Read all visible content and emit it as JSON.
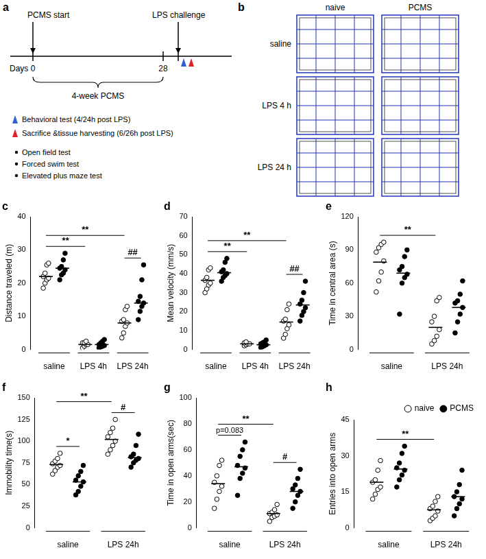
{
  "timeline": {
    "panel": "a",
    "start_label": "PCMS start",
    "challenge_label": "LPS challenge",
    "axis_label": "Days",
    "day_ticks": [
      0,
      28
    ],
    "period_label": "4-week PCMS",
    "markers": [
      {
        "label": "Behavioral test (4/24h post LPS)",
        "color": "#2f5fd0"
      },
      {
        "label": "Sacrifice &tissue harvesting (6/26h post LPS)",
        "color": "#e0202a"
      }
    ],
    "tests": [
      "Open field test",
      "Forced swim test",
      "Elevated plus maze test"
    ]
  },
  "tracks": {
    "panel": "b",
    "columns": [
      "naive",
      "PCMS"
    ],
    "rows": [
      "saline",
      "LPS 4 h",
      "LPS 24 h"
    ],
    "color": "#2233bb"
  },
  "chart_data": [
    {
      "panel": "c",
      "type": "scatter",
      "y_label": "Distance traveled (m)",
      "categories": [
        "saline",
        "LPS 4h",
        "LPS 24h"
      ],
      "series": [
        {
          "name": "naive",
          "color": "#000000",
          "marker": "circle-open",
          "values": [
            [
              18.5,
              20,
              21,
              21.5,
              22,
              23,
              25.5,
              26
            ],
            [
              0.5,
              1,
              1.5,
              1.5,
              2,
              2,
              2.5
            ],
            [
              3.5,
              5,
              7,
              8,
              8.5,
              9,
              12,
              13
            ]
          ],
          "means": [
            22,
            1.5,
            8
          ]
        },
        {
          "name": "PCMS",
          "color": "#000000",
          "marker": "circle",
          "values": [
            [
              21,
              22.5,
              23,
              24,
              24.5,
              25,
              27,
              29
            ],
            [
              0.5,
              0.8,
              1,
              1.2,
              1.5,
              2,
              2.5,
              3
            ],
            [
              9,
              11.5,
              13,
              14,
              14.5,
              16,
              21,
              25.5
            ]
          ],
          "means": [
            24.5,
            1.5,
            14
          ]
        }
      ],
      "ylim": [
        0,
        40
      ],
      "yticks": [
        0,
        10,
        20,
        30,
        40
      ],
      "grid": false,
      "annotations": [
        {
          "text": "**",
          "from": {
            "category": "saline",
            "series": "naive"
          },
          "to": {
            "category": "LPS 4h",
            "series": "naive"
          }
        },
        {
          "text": "**",
          "from": {
            "category": "saline",
            "series": "naive"
          },
          "to": {
            "category": "LPS 24h",
            "series": "naive"
          }
        },
        {
          "text": "##",
          "from": {
            "category": "LPS 24h",
            "series": "naive"
          },
          "to": {
            "category": "LPS 24h",
            "series": "PCMS"
          }
        }
      ]
    },
    {
      "panel": "d",
      "type": "scatter",
      "y_label": "Mean velocity (mm/s)",
      "categories": [
        "saline",
        "LPS 4h",
        "LPS 24h"
      ],
      "series": [
        {
          "name": "naive",
          "color": "#000000",
          "marker": "circle-open",
          "values": [
            [
              30,
              32,
              34,
              35,
              36.5,
              38,
              42,
              43
            ],
            [
              2,
              2.5,
              3,
              3,
              3.5,
              4
            ],
            [
              6,
              8,
              11,
              13,
              15,
              16,
              21,
              24
            ]
          ],
          "means": [
            36.5,
            3,
            14.5
          ]
        },
        {
          "name": "PCMS",
          "color": "#000000",
          "marker": "circle",
          "values": [
            [
              36,
              38,
              39,
              40,
              41,
              42,
              46,
              48
            ],
            [
              1,
              1.5,
              2,
              2.5,
              3,
              3.5,
              4,
              5
            ],
            [
              15,
              18,
              20,
              22,
              24,
              26,
              30,
              36
            ]
          ],
          "means": [
            40.5,
            2.5,
            23.5
          ]
        }
      ],
      "ylim": [
        0,
        70
      ],
      "yticks": [
        0,
        10,
        20,
        30,
        40,
        50,
        60,
        70
      ],
      "grid": false,
      "annotations": [
        {
          "text": "**",
          "from": {
            "category": "saline",
            "series": "naive"
          },
          "to": {
            "category": "LPS 4h",
            "series": "naive"
          }
        },
        {
          "text": "**",
          "from": {
            "category": "saline",
            "series": "naive"
          },
          "to": {
            "category": "LPS 24h",
            "series": "naive"
          }
        },
        {
          "text": "##",
          "from": {
            "category": "LPS 24h",
            "series": "naive"
          },
          "to": {
            "category": "LPS 24h",
            "series": "PCMS"
          }
        }
      ]
    },
    {
      "panel": "e",
      "type": "scatter",
      "y_label": "Time in central area (s)",
      "categories": [
        "saline",
        "LPS 24h"
      ],
      "series": [
        {
          "name": "naive",
          "color": "#000000",
          "marker": "circle-open",
          "values": [
            [
              52,
              62,
              70,
              80,
              88,
              92,
              95,
              97
            ],
            [
              5,
              8,
              12,
              18,
              25,
              30,
              44,
              47
            ]
          ],
          "means": [
            79,
            20
          ]
        },
        {
          "name": "PCMS",
          "color": "#000000",
          "marker": "circle",
          "values": [
            [
              32,
              60,
              65,
              68,
              72,
              75,
              84,
              90
            ],
            [
              15,
              25,
              32,
              38,
              42,
              44,
              50,
              62
            ]
          ],
          "means": [
            69,
            38
          ]
        }
      ],
      "ylim": [
        0,
        120
      ],
      "yticks": [
        0,
        30,
        60,
        90,
        120
      ],
      "grid": false,
      "annotations": [
        {
          "text": "**",
          "from": {
            "category": "saline",
            "series": "naive"
          },
          "to": {
            "category": "LPS 24h",
            "series": "naive"
          }
        }
      ]
    },
    {
      "panel": "f",
      "type": "scatter",
      "y_label": "Immobility time(s)",
      "categories": [
        "saline",
        "LPS 24h"
      ],
      "series": [
        {
          "name": "naive",
          "color": "#000000",
          "marker": "circle-open",
          "values": [
            [
              62,
              66,
              70,
              72,
              74,
              77,
              80,
              86
            ],
            [
              85,
              90,
              95,
              100,
              105,
              110,
              115,
              125
            ]
          ],
          "means": [
            73,
            102
          ]
        },
        {
          "name": "PCMS",
          "color": "#000000",
          "marker": "circle",
          "values": [
            [
              38,
              42,
              48,
              53,
              55,
              60,
              65,
              72
            ],
            [
              70,
              75,
              78,
              80,
              82,
              85,
              95,
              108
            ]
          ],
          "means": [
            53,
            81
          ]
        }
      ],
      "ylim": [
        0,
        150
      ],
      "yticks": [
        0,
        25,
        50,
        75,
        100,
        125,
        150
      ],
      "grid": false,
      "annotations": [
        {
          "text": "*",
          "from": {
            "category": "saline",
            "series": "naive"
          },
          "to": {
            "category": "saline",
            "series": "PCMS"
          }
        },
        {
          "text": "**",
          "from": {
            "category": "saline",
            "series": "naive"
          },
          "to": {
            "category": "LPS 24h",
            "series": "naive"
          }
        },
        {
          "text": "#",
          "from": {
            "category": "LPS 24h",
            "series": "naive"
          },
          "to": {
            "category": "LPS 24h",
            "series": "PCMS"
          }
        }
      ]
    },
    {
      "panel": "g",
      "type": "scatter",
      "y_label": "Time in open arms(sec)",
      "categories": [
        "saline",
        "LPS 24h"
      ],
      "series": [
        {
          "name": "naive",
          "color": "#000000",
          "marker": "circle-open",
          "values": [
            [
              15,
              22,
              28,
              32,
              35,
              40,
              48,
              52
            ],
            [
              5,
              8,
              9,
              10,
              11,
              12,
              14,
              18
            ]
          ],
          "means": [
            34,
            11
          ]
        },
        {
          "name": "PCMS",
          "color": "#000000",
          "marker": "circle",
          "values": [
            [
              25,
              38,
              42,
              46,
              48,
              55,
              60,
              66
            ],
            [
              15,
              20,
              25,
              28,
              30,
              33,
              38,
              45
            ]
          ],
          "means": [
            47,
            28
          ]
        }
      ],
      "ylim": [
        0,
        100
      ],
      "yticks": [
        0,
        20,
        40,
        60,
        80,
        100
      ],
      "grid": false,
      "annotations": [
        {
          "text": "p=0.083",
          "from": {
            "category": "saline",
            "series": "naive"
          },
          "to": {
            "category": "saline",
            "series": "PCMS"
          }
        },
        {
          "text": "**",
          "from": {
            "category": "saline",
            "series": "naive"
          },
          "to": {
            "category": "LPS 24h",
            "series": "naive"
          }
        },
        {
          "text": "#",
          "from": {
            "category": "LPS 24h",
            "series": "naive"
          },
          "to": {
            "category": "LPS 24h",
            "series": "PCMS"
          }
        }
      ]
    },
    {
      "panel": "h",
      "type": "scatter",
      "y_label": "Entries into open arms",
      "categories": [
        "saline",
        "LPS 24h"
      ],
      "series": [
        {
          "name": "naive",
          "color": "#000000",
          "marker": "circle-open",
          "values": [
            [
              12,
              14,
              16,
              17,
              19,
              20,
              24,
              28
            ],
            [
              3,
              4,
              5,
              7,
              8,
              9,
              11,
              13
            ]
          ],
          "means": [
            19,
            7.5
          ]
        },
        {
          "name": "PCMS",
          "color": "#000000",
          "marker": "circle",
          "values": [
            [
              17,
              20,
              22,
              24,
              25,
              27,
              31,
              34
            ],
            [
              5,
              8,
              10,
              12,
              13,
              15,
              18,
              24
            ]
          ],
          "means": [
            24.5,
            13
          ]
        }
      ],
      "ylim": [
        0,
        45
      ],
      "yticks": [
        0,
        15,
        30,
        45
      ],
      "grid": false,
      "legend": "top right",
      "annotations": [
        {
          "text": "**",
          "from": {
            "category": "saline",
            "series": "naive"
          },
          "to": {
            "category": "LPS 24h",
            "series": "naive"
          }
        }
      ]
    }
  ]
}
